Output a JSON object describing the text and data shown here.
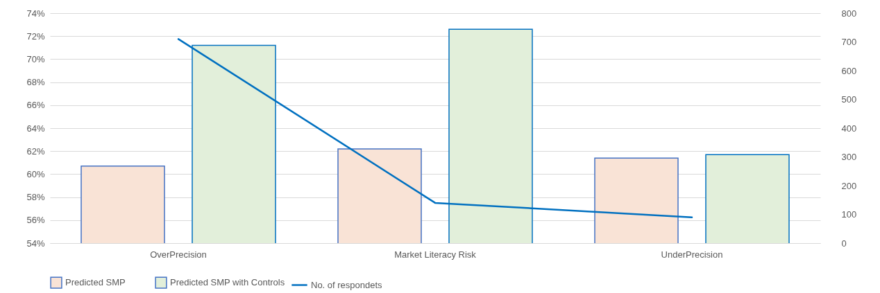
{
  "chart_data": {
    "type": "bar",
    "categories": [
      "OverPrecision",
      "Market Literacy Risk",
      "UnderPrecision"
    ],
    "series": [
      {
        "name": "Predicted SMP",
        "color": "#f9e3d6",
        "values": [
          60.7,
          62.2,
          61.4
        ]
      },
      {
        "name": "Predicted SMP with Controls",
        "color": "#e2efda",
        "values": [
          71.2,
          72.6,
          61.7
        ]
      },
      {
        "name": "No. of respondets",
        "type": "line",
        "axis": "y2",
        "color": "#0070c0",
        "values": [
          710,
          140,
          90
        ]
      }
    ],
    "ylim": [
      54,
      74
    ],
    "yticks": [
      {
        "value": 54,
        "label": "54%"
      },
      {
        "value": 56,
        "label": "56%"
      },
      {
        "value": 58,
        "label": "58%"
      },
      {
        "value": 60,
        "label": "60%"
      },
      {
        "value": 62,
        "label": "62%"
      },
      {
        "value": 64,
        "label": "64%"
      },
      {
        "value": 66,
        "label": "66%"
      },
      {
        "value": 68,
        "label": "68%"
      },
      {
        "value": 70,
        "label": "70%"
      },
      {
        "value": 72,
        "label": "72%"
      },
      {
        "value": 74,
        "label": "74%"
      }
    ],
    "y2lim": [
      0,
      800
    ],
    "y2ticks": [
      0,
      100,
      200,
      300,
      400,
      500,
      600,
      700,
      800
    ],
    "grid": "y",
    "legend": "bottom"
  }
}
